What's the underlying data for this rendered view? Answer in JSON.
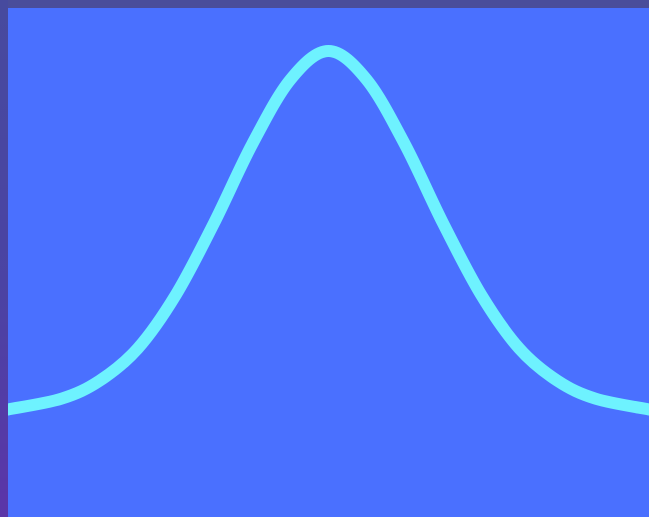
{
  "colors": {
    "frame": "#4a4d9a",
    "plot_background": "#4a70ff",
    "curve": "#6ef2ff"
  },
  "chart_data": {
    "type": "line",
    "title": "",
    "xlabel": "",
    "ylabel": "",
    "xlim": [
      -4.2,
      4.2
    ],
    "ylim": [
      -0.3,
      1.12
    ],
    "grid": false,
    "legend": "none",
    "series": [
      {
        "x": [
          -4.2,
          -3.5,
          -3.0,
          -2.5,
          -2.0,
          -1.5,
          -1.0,
          -0.5,
          0.0,
          0.5,
          1.0,
          1.5,
          2.0,
          2.5,
          3.0,
          3.5,
          4.2
        ],
        "values": [
          0.0,
          0.03,
          0.08,
          0.17,
          0.32,
          0.52,
          0.74,
          0.92,
          1.0,
          0.92,
          0.74,
          0.52,
          0.32,
          0.17,
          0.08,
          0.03,
          0.0
        ]
      }
    ]
  }
}
